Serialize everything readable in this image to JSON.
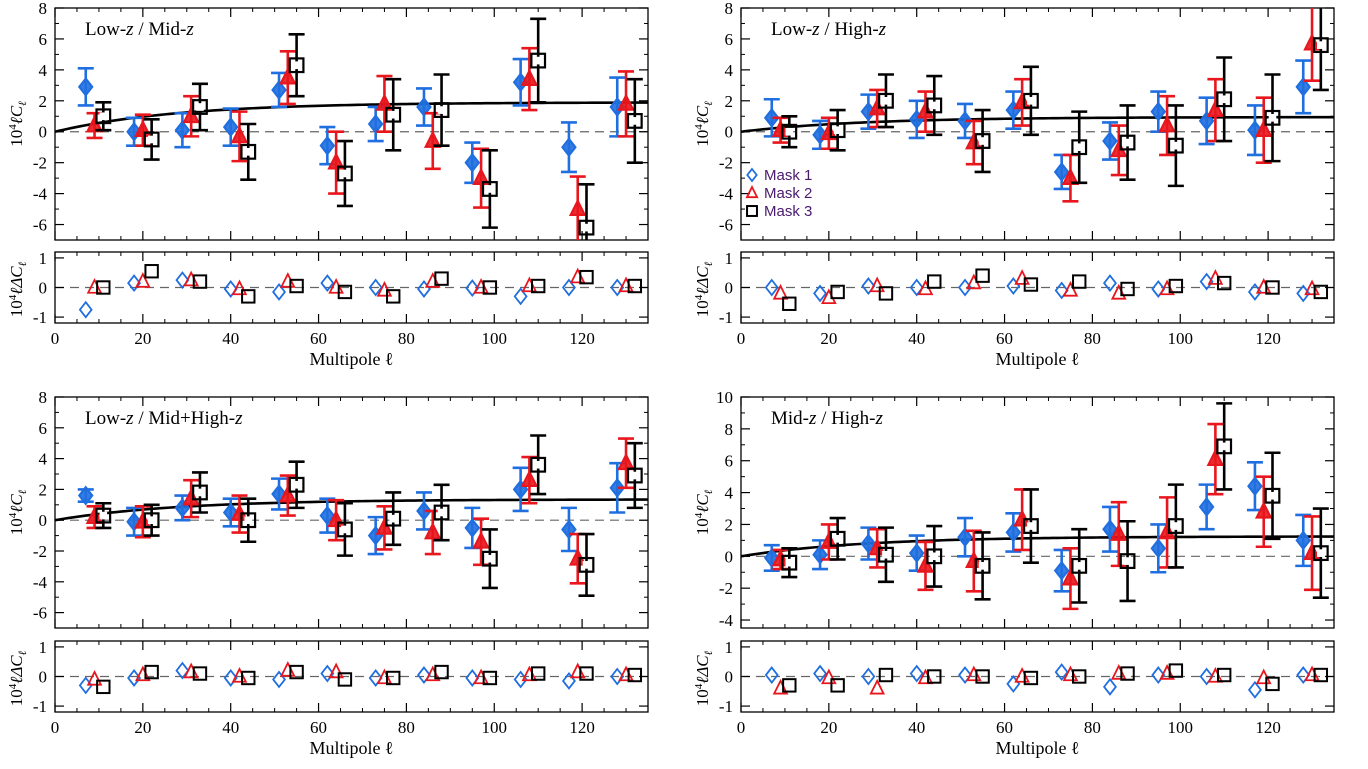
{
  "chart_data": [
    {
      "type": "scatter",
      "title": "Low-z / Mid-z",
      "xlabel": "Multipole ℓ",
      "ylabel_main": "10⁴ℓCℓ",
      "ylabel_resid": "10⁴ℓΔCℓ",
      "xlim": [
        0,
        135
      ],
      "ylim_main": [
        -7,
        8
      ],
      "yticks_main": [
        -6,
        -4,
        -2,
        0,
        2,
        4,
        6,
        8
      ],
      "ylim_resid": [
        -1.2,
        1.2
      ],
      "model_max": 1.9,
      "series": [
        {
          "name": "Mask 1",
          "x": [
            7,
            18,
            29,
            40,
            51,
            62,
            73,
            84,
            95,
            106,
            117,
            128
          ],
          "y": [
            2.9,
            0.0,
            0.1,
            0.3,
            2.7,
            -0.9,
            0.5,
            1.6,
            -2.0,
            3.2,
            -1.0,
            1.6
          ],
          "err": [
            1.2,
            0.9,
            1.1,
            1.2,
            1.1,
            1.2,
            1.1,
            1.2,
            1.3,
            1.5,
            1.6,
            1.9
          ],
          "resid": [
            -0.75,
            0.15,
            0.25,
            -0.05,
            -0.15,
            0.15,
            0.0,
            -0.05,
            -0.02,
            -0.3,
            0.0,
            0.0
          ]
        },
        {
          "name": "Mask 2",
          "x": [
            9,
            20,
            31,
            42,
            53,
            64,
            75,
            86,
            97,
            108,
            119,
            130
          ],
          "y": [
            0.4,
            0.1,
            1.0,
            -0.3,
            3.5,
            -2.0,
            1.8,
            -0.6,
            -3.0,
            3.4,
            -5.0,
            1.8
          ],
          "err": [
            0.8,
            1.0,
            1.3,
            1.6,
            1.7,
            2.0,
            1.8,
            1.8,
            1.9,
            2.0,
            2.1,
            2.1
          ],
          "resid": [
            0.0,
            0.2,
            0.25,
            -0.05,
            0.2,
            0.0,
            -0.1,
            0.2,
            0.0,
            0.05,
            0.35,
            0.05
          ]
        },
        {
          "name": "Mask 3",
          "x": [
            11,
            22,
            33,
            44,
            55,
            66,
            77,
            88,
            99,
            110,
            121,
            132
          ],
          "y": [
            1.0,
            -0.5,
            1.6,
            -1.3,
            4.3,
            -2.7,
            1.1,
            1.4,
            -3.7,
            4.6,
            -6.2,
            0.7
          ],
          "err": [
            0.9,
            1.3,
            1.5,
            1.8,
            2.0,
            2.1,
            2.3,
            2.3,
            2.5,
            2.7,
            2.8,
            2.7
          ],
          "resid": [
            0.0,
            0.55,
            0.2,
            -0.3,
            0.05,
            -0.15,
            -0.3,
            0.3,
            0.0,
            0.05,
            0.35,
            0.05
          ]
        }
      ]
    },
    {
      "type": "scatter",
      "title": "Low-z / High-z",
      "xlabel": "Multipole ℓ",
      "ylabel_main": "10⁴ℓCℓ",
      "ylabel_resid": "10⁴ℓΔCℓ",
      "xlim": [
        0,
        135
      ],
      "ylim_main": [
        -7,
        8
      ],
      "yticks_main": [
        -6,
        -4,
        -2,
        0,
        2,
        4,
        6,
        8
      ],
      "ylim_resid": [
        -1.2,
        1.2
      ],
      "model_max": 0.95,
      "legend": [
        "Mask 1",
        "Mask 2",
        "Mask 3"
      ],
      "series": [
        {
          "name": "Mask 1",
          "x": [
            7,
            18,
            29,
            40,
            51,
            62,
            73,
            84,
            95,
            106,
            117,
            128
          ],
          "y": [
            0.9,
            -0.2,
            1.3,
            0.8,
            0.7,
            1.4,
            -2.6,
            -0.6,
            1.3,
            0.7,
            0.1,
            2.9
          ],
          "err": [
            1.2,
            0.9,
            1.1,
            1.2,
            1.1,
            1.2,
            1.1,
            1.2,
            1.3,
            1.5,
            1.6,
            1.7
          ],
          "resid": [
            0.0,
            -0.2,
            0.05,
            0.0,
            0.0,
            0.05,
            -0.1,
            0.15,
            -0.05,
            0.2,
            -0.15,
            -0.2
          ]
        },
        {
          "name": "Mask 2",
          "x": [
            9,
            20,
            31,
            42,
            53,
            64,
            75,
            86,
            97,
            108,
            119,
            130
          ],
          "y": [
            0.1,
            -0.1,
            1.5,
            1.3,
            -0.7,
            1.9,
            -3.0,
            -1.2,
            0.4,
            1.4,
            0.1,
            5.7
          ],
          "err": [
            0.8,
            1.0,
            1.2,
            1.3,
            1.4,
            1.5,
            1.5,
            1.6,
            1.9,
            2.0,
            2.1,
            2.4
          ],
          "resid": [
            -0.2,
            -0.35,
            0.05,
            -0.05,
            0.15,
            0.3,
            -0.1,
            -0.2,
            -0.05,
            0.3,
            0.0,
            -0.05
          ]
        },
        {
          "name": "Mask 3",
          "x": [
            11,
            22,
            33,
            44,
            55,
            66,
            77,
            88,
            99,
            110,
            121,
            132
          ],
          "y": [
            0.0,
            0.1,
            2.0,
            1.7,
            -0.6,
            2.0,
            -1.0,
            -0.7,
            -0.9,
            2.1,
            0.9,
            5.6
          ],
          "err": [
            1.0,
            1.3,
            1.7,
            1.9,
            2.0,
            2.2,
            2.3,
            2.4,
            2.6,
            2.7,
            2.8,
            2.9
          ],
          "resid": [
            -0.55,
            -0.15,
            -0.2,
            0.2,
            0.4,
            0.1,
            0.2,
            -0.05,
            0.05,
            0.15,
            0.0,
            -0.15
          ]
        }
      ]
    },
    {
      "type": "scatter",
      "title": "Low-z / Mid+High-z",
      "xlabel": "Multipole ℓ",
      "ylabel_main": "10⁴ℓCℓ",
      "ylabel_resid": "10⁴ℓΔCℓ",
      "xlim": [
        0,
        135
      ],
      "ylim_main": [
        -7,
        8
      ],
      "yticks_main": [
        -6,
        -4,
        -2,
        0,
        2,
        4,
        6,
        8
      ],
      "ylim_resid": [
        -1.2,
        1.2
      ],
      "model_max": 1.35,
      "series": [
        {
          "name": "Mask 1",
          "x": [
            7,
            18,
            29,
            40,
            51,
            62,
            73,
            84,
            95,
            106,
            117,
            128
          ],
          "y": [
            1.6,
            -0.1,
            0.8,
            0.5,
            1.7,
            0.3,
            -1.0,
            0.6,
            -0.5,
            2.0,
            -0.6,
            2.1
          ],
          "err": [
            0.4,
            0.9,
            0.8,
            0.9,
            1.0,
            1.1,
            1.2,
            1.2,
            1.3,
            1.4,
            1.4,
            1.6
          ],
          "resid": [
            -0.3,
            -0.05,
            0.2,
            -0.05,
            -0.1,
            0.1,
            -0.05,
            0.05,
            -0.05,
            -0.1,
            -0.15,
            0.0
          ]
        },
        {
          "name": "Mask 2",
          "x": [
            9,
            20,
            31,
            42,
            53,
            64,
            75,
            86,
            97,
            108,
            119,
            130
          ],
          "y": [
            0.2,
            -0.1,
            1.4,
            0.4,
            1.6,
            0.0,
            -0.5,
            -0.8,
            -1.4,
            2.6,
            -2.5,
            3.7
          ],
          "err": [
            0.7,
            1.0,
            1.2,
            1.2,
            1.3,
            1.3,
            1.4,
            1.4,
            1.5,
            1.5,
            1.6,
            1.6
          ],
          "resid": [
            -0.1,
            0.05,
            0.15,
            0.0,
            0.2,
            0.15,
            -0.05,
            0.05,
            -0.05,
            0.05,
            0.15,
            0.05
          ]
        },
        {
          "name": "Mask 3",
          "x": [
            11,
            22,
            33,
            44,
            55,
            66,
            77,
            88,
            99,
            110,
            121,
            132
          ],
          "y": [
            0.3,
            0.0,
            1.8,
            0.0,
            2.3,
            -0.6,
            0.1,
            0.5,
            -2.5,
            3.6,
            -2.9,
            2.9
          ],
          "err": [
            0.8,
            1.0,
            1.3,
            1.4,
            1.5,
            1.7,
            1.7,
            1.8,
            1.9,
            1.9,
            2.0,
            2.1
          ],
          "resid": [
            -0.35,
            0.15,
            0.1,
            -0.05,
            0.15,
            -0.1,
            -0.05,
            0.15,
            -0.05,
            0.1,
            0.1,
            0.05
          ]
        }
      ]
    },
    {
      "type": "scatter",
      "title": "Mid-z / High-z",
      "xlabel": "Multipole ℓ",
      "ylabel_main": "10⁴ℓCℓ",
      "ylabel_resid": "10⁴ℓΔCℓ",
      "xlim": [
        0,
        135
      ],
      "ylim_main": [
        -4.5,
        10
      ],
      "yticks_main": [
        -4,
        -2,
        0,
        2,
        4,
        6,
        8,
        10
      ],
      "ylim_resid": [
        -1.2,
        1.2
      ],
      "model_max": 1.25,
      "series": [
        {
          "name": "Mask 1",
          "x": [
            7,
            18,
            29,
            40,
            51,
            62,
            73,
            84,
            95,
            106,
            117,
            128
          ],
          "y": [
            -0.1,
            0.1,
            0.8,
            0.2,
            1.2,
            1.5,
            -0.9,
            1.7,
            0.5,
            3.1,
            4.4,
            1.0
          ],
          "err": [
            0.8,
            0.9,
            1.0,
            1.1,
            1.2,
            1.2,
            1.3,
            1.4,
            1.5,
            1.4,
            1.5,
            1.6
          ],
          "resid": [
            0.05,
            0.1,
            0.0,
            0.1,
            0.05,
            -0.25,
            0.15,
            -0.35,
            0.05,
            0.0,
            -0.45,
            0.05
          ]
        },
        {
          "name": "Mask 2",
          "x": [
            9,
            20,
            31,
            42,
            53,
            64,
            75,
            86,
            97,
            108,
            119,
            130
          ],
          "y": [
            -0.2,
            0.9,
            0.5,
            -0.6,
            -0.3,
            2.3,
            -1.4,
            1.4,
            1.5,
            6.1,
            2.8,
            0.2
          ],
          "err": [
            0.6,
            1.1,
            1.2,
            1.5,
            1.9,
            1.9,
            1.9,
            2.0,
            2.2,
            2.2,
            2.2,
            2.3
          ],
          "resid": [
            -0.4,
            -0.05,
            -0.4,
            -0.05,
            0.05,
            0.0,
            0.05,
            0.1,
            0.1,
            0.0,
            -0.05,
            0.05
          ]
        },
        {
          "name": "Mask 3",
          "x": [
            11,
            22,
            33,
            44,
            55,
            66,
            77,
            88,
            99,
            110,
            121,
            132
          ],
          "y": [
            -0.4,
            1.1,
            0.1,
            0.0,
            -0.6,
            1.9,
            -0.6,
            -0.3,
            1.9,
            6.9,
            3.8,
            0.2
          ],
          "err": [
            0.9,
            1.3,
            1.7,
            1.9,
            2.1,
            2.3,
            2.3,
            2.5,
            2.6,
            2.7,
            2.7,
            2.8
          ],
          "resid": [
            -0.3,
            -0.3,
            0.05,
            0.0,
            0.0,
            -0.05,
            0.0,
            0.1,
            0.2,
            0.05,
            -0.25,
            0.05
          ]
        }
      ]
    }
  ],
  "colors": {
    "Mask 1": "#1f6fe0",
    "Mask 2": "#e8161d",
    "Mask 3": "#000000"
  }
}
